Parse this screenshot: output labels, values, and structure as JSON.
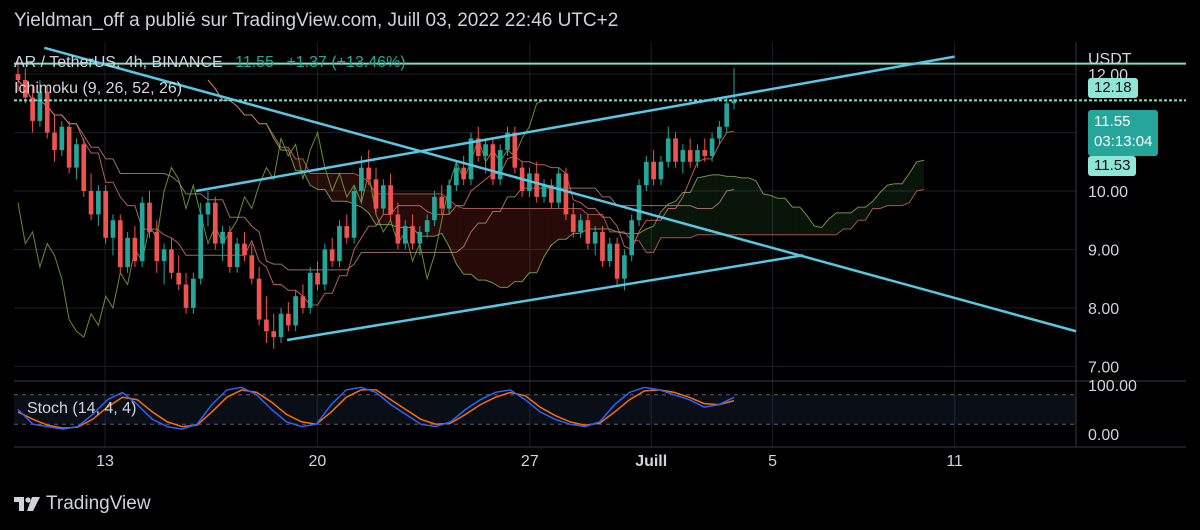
{
  "header": {
    "published_text": "Yieldman_off a publié sur TradingView.com, Juill 03, 2022 22:46 UTC+2"
  },
  "legend": {
    "symbol_text": "AR / TetherUS, 4h, BINANCE",
    "last_price": "11.55",
    "change": "+1.37 (+13.46%)",
    "ichimoku_text": "Ichimoku (9, 26, 52, 26)",
    "stoch_text": "Stoch (14, 4, 4)"
  },
  "axis": {
    "currency": "USDT",
    "y_ticks": [
      "12.00",
      "10.00",
      "9.00",
      "8.00",
      "7.00"
    ],
    "stoch_ticks": [
      "100.00",
      "0.00"
    ],
    "x_ticks": [
      "13",
      "20",
      "27",
      "Juill",
      "5",
      "11"
    ]
  },
  "badges": {
    "level_price": "12.18",
    "current_price": "11.55",
    "countdown": "03:13:04",
    "cloud_price": "11.53"
  },
  "footer": {
    "brand": "TradingView"
  },
  "colors": {
    "up": "#26a69a",
    "down": "#ef5350",
    "trendline": "#56c8e3",
    "horizontal_line": "#7fe0c8",
    "stoch_k": "#2962ff",
    "stoch_d": "#ff6d00",
    "conversion": "#e57373",
    "base": "#c38686",
    "lagging": "#7cb342"
  },
  "chart_data": {
    "type": "candlestick",
    "symbol": "AR / TetherUS",
    "interval": "4h",
    "exchange": "BINANCE",
    "ylim": [
      6.8,
      12.55
    ],
    "x_range": [
      "2022-06-10",
      "2022-07-15"
    ],
    "x_tick_dates": [
      "2022-06-13",
      "2022-06-20",
      "2022-06-27",
      "2022-07-01",
      "2022-07-05",
      "2022-07-11"
    ],
    "candles_ohlc": [
      [
        12.0,
        12.3,
        11.7,
        11.9
      ],
      [
        11.9,
        12.1,
        11.5,
        11.6
      ],
      [
        11.6,
        11.8,
        11.0,
        11.2
      ],
      [
        11.2,
        11.9,
        11.1,
        11.7
      ],
      [
        11.7,
        11.8,
        10.9,
        11.0
      ],
      [
        11.0,
        11.3,
        10.5,
        10.7
      ],
      [
        10.7,
        11.2,
        10.6,
        11.1
      ],
      [
        11.1,
        11.2,
        10.3,
        10.4
      ],
      [
        10.4,
        10.9,
        10.2,
        10.8
      ],
      [
        10.8,
        10.9,
        9.9,
        10.0
      ],
      [
        10.0,
        10.3,
        9.5,
        9.6
      ],
      [
        9.6,
        10.1,
        9.4,
        10.0
      ],
      [
        10.0,
        10.1,
        9.1,
        9.2
      ],
      [
        9.2,
        9.6,
        8.9,
        9.5
      ],
      [
        9.5,
        9.6,
        8.6,
        8.7
      ],
      [
        8.7,
        9.3,
        8.6,
        9.2
      ],
      [
        9.2,
        9.4,
        8.7,
        8.8
      ],
      [
        8.8,
        9.9,
        8.7,
        9.8
      ],
      [
        9.8,
        10.0,
        9.2,
        9.3
      ],
      [
        9.3,
        9.5,
        8.6,
        8.8
      ],
      [
        8.8,
        9.1,
        8.4,
        9.0
      ],
      [
        9.0,
        9.2,
        8.5,
        8.6
      ],
      [
        8.6,
        8.9,
        8.3,
        8.4
      ],
      [
        8.4,
        8.6,
        7.9,
        8.0
      ],
      [
        8.0,
        8.6,
        7.9,
        8.5
      ],
      [
        8.5,
        9.8,
        8.4,
        9.6
      ],
      [
        9.6,
        10.0,
        9.4,
        9.8
      ],
      [
        9.8,
        9.9,
        9.0,
        9.1
      ],
      [
        9.1,
        9.4,
        8.8,
        9.3
      ],
      [
        9.3,
        9.4,
        8.6,
        8.7
      ],
      [
        8.7,
        9.2,
        8.6,
        9.1
      ],
      [
        9.1,
        9.3,
        8.8,
        8.9
      ],
      [
        8.9,
        9.1,
        8.4,
        8.5
      ],
      [
        8.5,
        8.7,
        7.7,
        7.8
      ],
      [
        7.8,
        8.2,
        7.4,
        7.6
      ],
      [
        7.6,
        7.9,
        7.3,
        7.5
      ],
      [
        7.5,
        8.0,
        7.4,
        7.9
      ],
      [
        7.9,
        8.1,
        7.6,
        7.7
      ],
      [
        7.7,
        8.3,
        7.6,
        8.2
      ],
      [
        8.2,
        8.4,
        7.9,
        8.0
      ],
      [
        8.0,
        8.7,
        7.9,
        8.6
      ],
      [
        8.6,
        8.8,
        8.3,
        8.4
      ],
      [
        8.4,
        9.1,
        8.3,
        9.0
      ],
      [
        9.0,
        9.2,
        8.7,
        8.8
      ],
      [
        8.8,
        9.5,
        8.7,
        9.4
      ],
      [
        9.4,
        9.6,
        9.1,
        9.2
      ],
      [
        9.2,
        10.1,
        9.1,
        10.0
      ],
      [
        10.0,
        10.6,
        9.8,
        10.4
      ],
      [
        10.4,
        10.7,
        10.1,
        10.2
      ],
      [
        10.2,
        10.4,
        9.6,
        9.7
      ],
      [
        9.7,
        10.2,
        9.6,
        10.1
      ],
      [
        10.1,
        10.3,
        9.5,
        9.6
      ],
      [
        9.6,
        9.8,
        9.0,
        9.1
      ],
      [
        9.1,
        9.5,
        9.0,
        9.4
      ],
      [
        9.4,
        9.6,
        9.0,
        9.1
      ],
      [
        9.1,
        9.4,
        8.9,
        9.3
      ],
      [
        9.3,
        9.6,
        9.2,
        9.5
      ],
      [
        9.5,
        10.0,
        9.4,
        9.9
      ],
      [
        9.9,
        10.1,
        9.6,
        9.7
      ],
      [
        9.7,
        10.2,
        9.6,
        10.1
      ],
      [
        10.1,
        10.5,
        10.0,
        10.4
      ],
      [
        10.4,
        10.6,
        10.1,
        10.2
      ],
      [
        10.2,
        11.0,
        10.1,
        10.9
      ],
      [
        10.9,
        11.1,
        10.5,
        10.6
      ],
      [
        10.6,
        10.9,
        10.3,
        10.8
      ],
      [
        10.8,
        10.9,
        10.1,
        10.2
      ],
      [
        10.2,
        10.8,
        10.1,
        10.7
      ],
      [
        10.7,
        11.1,
        10.6,
        11.0
      ],
      [
        11.0,
        11.1,
        10.3,
        10.4
      ],
      [
        10.4,
        10.5,
        9.9,
        10.0
      ],
      [
        10.0,
        10.4,
        9.9,
        10.3
      ],
      [
        10.3,
        10.5,
        9.8,
        9.9
      ],
      [
        9.9,
        10.2,
        9.8,
        10.1
      ],
      [
        10.1,
        10.2,
        9.7,
        9.8
      ],
      [
        9.8,
        10.4,
        9.7,
        10.3
      ],
      [
        10.3,
        10.4,
        9.5,
        9.6
      ],
      [
        9.6,
        9.8,
        9.2,
        9.3
      ],
      [
        9.3,
        9.6,
        9.2,
        9.5
      ],
      [
        9.5,
        9.6,
        9.0,
        9.1
      ],
      [
        9.1,
        9.4,
        8.9,
        9.3
      ],
      [
        9.3,
        9.4,
        8.7,
        8.8
      ],
      [
        8.8,
        9.2,
        8.7,
        9.1
      ],
      [
        9.1,
        9.2,
        8.4,
        8.5
      ],
      [
        8.5,
        9.0,
        8.3,
        8.9
      ],
      [
        8.9,
        9.6,
        8.8,
        9.5
      ],
      [
        9.5,
        10.2,
        9.4,
        10.1
      ],
      [
        10.1,
        10.6,
        10.0,
        10.5
      ],
      [
        10.5,
        10.7,
        10.1,
        10.2
      ],
      [
        10.2,
        10.6,
        10.1,
        10.5
      ],
      [
        10.5,
        11.1,
        10.4,
        10.9
      ],
      [
        10.9,
        11.0,
        10.4,
        10.5
      ],
      [
        10.5,
        10.8,
        10.3,
        10.7
      ],
      [
        10.7,
        10.9,
        10.4,
        10.5
      ],
      [
        10.5,
        10.8,
        10.4,
        10.7
      ],
      [
        10.7,
        10.9,
        10.5,
        10.6
      ],
      [
        10.6,
        11.0,
        10.5,
        10.9
      ],
      [
        10.9,
        11.2,
        10.8,
        11.1
      ],
      [
        11.1,
        11.6,
        11.0,
        11.5
      ],
      [
        11.5,
        12.1,
        11.4,
        11.55
      ]
    ],
    "horizontal_lines": [
      12.18,
      11.55
    ],
    "trendlines": [
      {
        "from": [
          "2022-06-11",
          12.45
        ],
        "to": [
          "2022-07-15",
          7.6
        ]
      },
      {
        "from": [
          "2022-06-16",
          10.0
        ],
        "to": [
          "2022-07-11",
          12.3
        ]
      },
      {
        "from": [
          "2022-06-19",
          7.45
        ],
        "to": [
          "2022-07-06",
          8.9
        ]
      }
    ],
    "stochastic": {
      "ylim": [
        0,
        100
      ],
      "k": [
        50,
        20,
        15,
        10,
        15,
        40,
        70,
        85,
        60,
        30,
        15,
        10,
        20,
        60,
        90,
        95,
        80,
        50,
        25,
        15,
        20,
        60,
        90,
        95,
        85,
        60,
        40,
        20,
        15,
        25,
        50,
        70,
        85,
        90,
        70,
        45,
        30,
        20,
        15,
        25,
        60,
        85,
        95,
        90,
        80,
        70,
        55,
        60,
        75
      ],
      "d": [
        45,
        30,
        18,
        12,
        14,
        30,
        55,
        75,
        70,
        45,
        25,
        15,
        18,
        45,
        75,
        90,
        85,
        65,
        40,
        25,
        20,
        45,
        75,
        90,
        90,
        70,
        50,
        30,
        20,
        22,
        40,
        60,
        75,
        85,
        78,
        55,
        38,
        25,
        18,
        22,
        45,
        70,
        88,
        90,
        85,
        75,
        62,
        60,
        68
      ]
    }
  }
}
